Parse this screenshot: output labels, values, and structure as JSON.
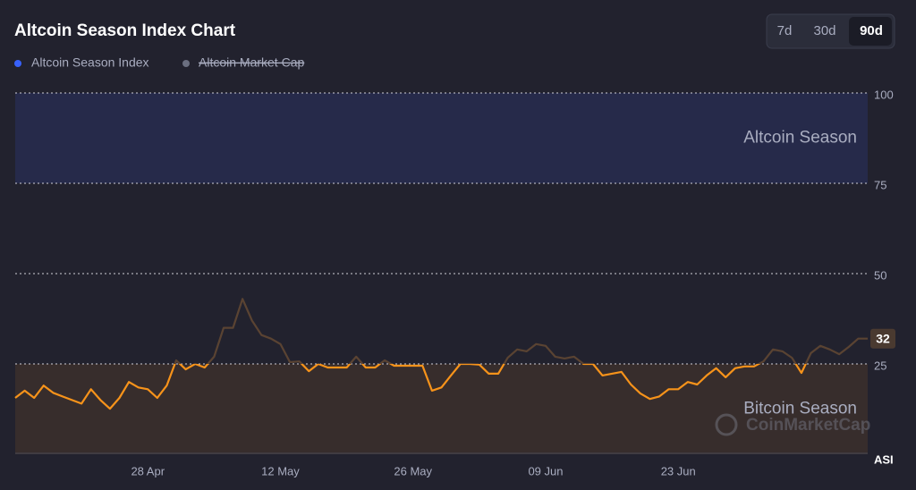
{
  "chart_data": {
    "type": "line",
    "title": "Altcoin Season Index Chart",
    "ranges": [
      "7d",
      "30d",
      "90d"
    ],
    "active_range": "90d",
    "categories": [
      null,
      null,
      null,
      null,
      null,
      null,
      null,
      null,
      null,
      null,
      null,
      null,
      null,
      null,
      "28 Apr",
      null,
      null,
      null,
      null,
      null,
      null,
      null,
      null,
      null,
      null,
      null,
      null,
      null,
      "12 May",
      null,
      null,
      null,
      null,
      null,
      null,
      null,
      null,
      null,
      null,
      null,
      null,
      null,
      "26 May",
      null,
      null,
      null,
      null,
      null,
      null,
      null,
      null,
      null,
      null,
      null,
      null,
      null,
      "09 Jun",
      null,
      null,
      null,
      null,
      null,
      null,
      null,
      null,
      null,
      null,
      null,
      null,
      null,
      "23 Jun",
      null,
      null,
      null,
      null,
      null,
      null,
      null,
      null,
      null,
      null,
      null,
      null,
      null,
      null,
      null,
      null,
      null,
      null,
      null,
      null
    ],
    "series": [
      {
        "name": "Altcoin Season Index",
        "color": "#f7931a",
        "legend_color": "#3861fb",
        "values": [
          15.6,
          17.6,
          15.6,
          19,
          17,
          16,
          15,
          14,
          18,
          15,
          12.6,
          15.6,
          20,
          18.5,
          18,
          15.6,
          19,
          26,
          23.5,
          25,
          24,
          27,
          35,
          35,
          43,
          37,
          33,
          32,
          30.5,
          25.5,
          25.7,
          23,
          25,
          24,
          24,
          24,
          27,
          24,
          24,
          26,
          24.5,
          24.5,
          24.5,
          24.5,
          17.6,
          18.5,
          21.8,
          25,
          25,
          24.8,
          22.3,
          22.3,
          26.7,
          29,
          28.5,
          30.5,
          30,
          27,
          26.5,
          27,
          25,
          25,
          21.8,
          22.3,
          22.8,
          19.3,
          16.8,
          15.3,
          16,
          18,
          18,
          20,
          19.3,
          21.8,
          23.8,
          21.3,
          23.8,
          24.3,
          24.3,
          25.7,
          29,
          28.5,
          26.7,
          22.5,
          28,
          30,
          29,
          27.7,
          29.7,
          32,
          32
        ]
      }
    ],
    "hidden_series": [
      {
        "name": "Altcoin Market Cap",
        "color": "#6b6f80"
      }
    ],
    "above_color": "#5a4332",
    "bands": [
      {
        "label": "Altcoin Season",
        "from": 75,
        "to": 100,
        "color": "#262a4a"
      },
      {
        "label": "Bitcoin Season",
        "from": 0,
        "to": 25,
        "color": "#372d2c"
      }
    ],
    "ylabel": "ASI",
    "watermark": "CoinMarketCap",
    "ylim": [
      0,
      100
    ],
    "yticks": [
      25,
      50,
      75,
      100
    ],
    "grid": true
  }
}
